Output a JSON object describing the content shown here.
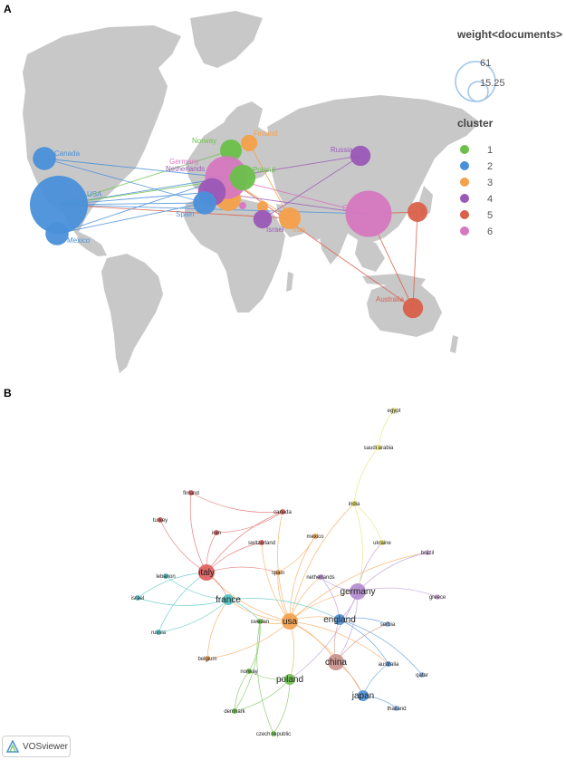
{
  "panelA": {
    "label": "A",
    "legend": {
      "weight_title": "weight<documents>",
      "weight_max": "61",
      "weight_min": "15.25",
      "cluster_title": "cluster",
      "clusters": [
        {
          "id": "1",
          "color": "#6cc04a"
        },
        {
          "id": "2",
          "color": "#4a90d9"
        },
        {
          "id": "3",
          "color": "#f5a04a"
        },
        {
          "id": "4",
          "color": "#9b59b6"
        },
        {
          "id": "5",
          "color": "#d9604a"
        },
        {
          "id": "6",
          "color": "#d678c0"
        }
      ]
    },
    "countries": [
      {
        "name": "USA",
        "cluster": 2,
        "docs": 61
      },
      {
        "name": "Canada",
        "cluster": 2,
        "docs": 6
      },
      {
        "name": "Mexico",
        "cluster": 2,
        "docs": 6
      },
      {
        "name": "Norway",
        "cluster": 1,
        "docs": 5
      },
      {
        "name": "Finland",
        "cluster": 3,
        "docs": 2
      },
      {
        "name": "Germany",
        "cluster": 6,
        "docs": 30
      },
      {
        "name": "Netherlands",
        "cluster": 4,
        "docs": 10
      },
      {
        "name": "Poland",
        "cluster": 1,
        "docs": 8
      },
      {
        "name": "Spain",
        "cluster": 2,
        "docs": 6
      },
      {
        "name": "Russia",
        "cluster": 4,
        "docs": 4
      },
      {
        "name": "China",
        "cluster": 6,
        "docs": 36
      },
      {
        "name": "Israel",
        "cluster": 4,
        "docs": 3
      },
      {
        "name": "Iran",
        "cluster": 3,
        "docs": 5
      },
      {
        "name": "Australia",
        "cluster": 5,
        "docs": 4
      }
    ]
  },
  "panelB": {
    "label": "B",
    "brand": "VOSviewer",
    "nodes": [
      {
        "name": "usa",
        "color": "#f5a04a",
        "size": "large"
      },
      {
        "name": "germany",
        "color": "#b28ad0",
        "size": "large"
      },
      {
        "name": "china",
        "color": "#c89088",
        "size": "large"
      },
      {
        "name": "italy",
        "color": "#e05a5a",
        "size": "large"
      },
      {
        "name": "france",
        "color": "#4ac0c0",
        "size": "medium"
      },
      {
        "name": "england",
        "color": "#4a90d9",
        "size": "medium"
      },
      {
        "name": "japan",
        "color": "#4a90d9",
        "size": "medium"
      },
      {
        "name": "poland",
        "color": "#6cc04a",
        "size": "medium"
      },
      {
        "name": "sweden",
        "color": "#6cc04a",
        "size": "small"
      },
      {
        "name": "norway",
        "color": "#6cc04a",
        "size": "small"
      },
      {
        "name": "denmark",
        "color": "#6cc04a",
        "size": "small"
      },
      {
        "name": "czech republic",
        "color": "#6cc04a",
        "size": "small"
      },
      {
        "name": "netherlands",
        "color": "#b28ad0",
        "size": "small"
      },
      {
        "name": "spain",
        "color": "#f5a04a",
        "size": "small"
      },
      {
        "name": "mexico",
        "color": "#f5a04a",
        "size": "small"
      },
      {
        "name": "belgium",
        "color": "#f5a04a",
        "size": "small"
      },
      {
        "name": "canada",
        "color": "#e05a5a",
        "size": "small"
      },
      {
        "name": "switzerland",
        "color": "#e05a5a",
        "size": "small"
      },
      {
        "name": "iran",
        "color": "#e05a5a",
        "size": "small"
      },
      {
        "name": "finland",
        "color": "#e05a5a",
        "size": "small"
      },
      {
        "name": "turkey",
        "color": "#e05a5a",
        "size": "small"
      },
      {
        "name": "lebanon",
        "color": "#4ac0c0",
        "size": "small"
      },
      {
        "name": "israel",
        "color": "#4ac0c0",
        "size": "small"
      },
      {
        "name": "russia",
        "color": "#4ac0c0",
        "size": "small"
      },
      {
        "name": "india",
        "color": "#e0e060",
        "size": "small"
      },
      {
        "name": "ukraine",
        "color": "#e0e060",
        "size": "small"
      },
      {
        "name": "saudi arabia",
        "color": "#e0e060",
        "size": "small"
      },
      {
        "name": "egypt",
        "color": "#e0e060",
        "size": "small"
      },
      {
        "name": "brazil",
        "color": "#d0a8e0",
        "size": "small"
      },
      {
        "name": "greece",
        "color": "#d0a8e0",
        "size": "small"
      },
      {
        "name": "serbia",
        "color": "#88b8e8",
        "size": "small"
      },
      {
        "name": "australia",
        "color": "#4a90d9",
        "size": "small"
      },
      {
        "name": "qatar",
        "color": "#88b8e8",
        "size": "small"
      },
      {
        "name": "thailand",
        "color": "#88b8e8",
        "size": "small"
      }
    ]
  }
}
